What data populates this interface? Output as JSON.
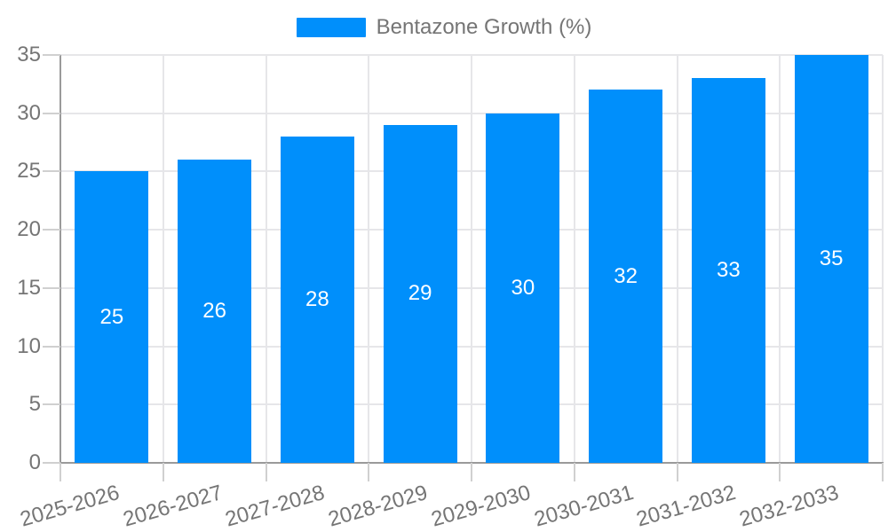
{
  "chart_data": {
    "type": "bar",
    "title": "",
    "legend": {
      "position": "top",
      "entries": [
        {
          "label": "Bentazone Growth (%)",
          "color": "#008FFB"
        }
      ]
    },
    "categories": [
      "2025-2026",
      "2026-2027",
      "2027-2028",
      "2028-2029",
      "2029-2030",
      "2030-2031",
      "2031-2032",
      "2032-2033"
    ],
    "series": [
      {
        "name": "Bentazone Growth (%)",
        "color": "#008FFB",
        "values": [
          25,
          26,
          28,
          29,
          30,
          32,
          33,
          35
        ]
      }
    ],
    "show_bar_value_labels": true,
    "xlabel": "",
    "ylabel": "",
    "ylim": [
      0,
      35
    ],
    "yticks": [
      0,
      5,
      10,
      15,
      20,
      25,
      30,
      35
    ],
    "grid": true,
    "x_tick_rotation_deg": -16
  },
  "style": {
    "bar_color": "#008FFB",
    "bar_value_color": "#ffffff",
    "axis_line_color": "#9a9a9a",
    "gridline_color": "#e6e6e9",
    "tick_mark_color": "#d0d0d0",
    "label_color": "#757575",
    "background": "#ffffff"
  }
}
